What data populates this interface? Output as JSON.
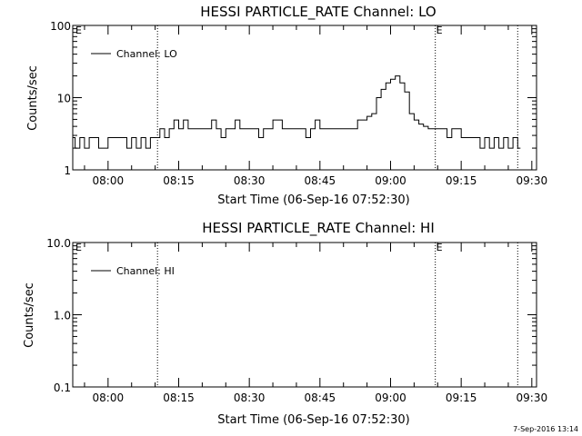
{
  "footer": {
    "timestamp": "7-Sep-2016 13:14"
  },
  "chart_data": [
    {
      "type": "line",
      "title": "HESSI PARTICLE_RATE Channel: LO",
      "xlabel": "Start Time (06-Sep-16 07:52:30)",
      "ylabel": "Counts/sec",
      "y_scale": "log",
      "ylim": [
        1,
        100
      ],
      "xlim": [
        "07:52:30",
        "09:31:00"
      ],
      "y_ticks": [
        {
          "value": 1,
          "label": "1"
        },
        {
          "value": 10,
          "label": "10"
        },
        {
          "value": 100,
          "label": "100"
        }
      ],
      "x_ticks": [
        {
          "value": "08:00",
          "label": "08:00"
        },
        {
          "value": "08:15",
          "label": "08:15"
        },
        {
          "value": "08:30",
          "label": "08:30"
        },
        {
          "value": "08:45",
          "label": "08:45"
        },
        {
          "value": "09:00",
          "label": "09:00"
        },
        {
          "value": "09:15",
          "label": "09:15"
        },
        {
          "value": "09:30",
          "label": "09:30"
        }
      ],
      "flag_lines": [
        {
          "time": "08:10:30",
          "label": ""
        },
        {
          "time": "09:09:30",
          "label": "E"
        },
        {
          "time": "09:27:00",
          "label": ""
        }
      ],
      "corner_flag": "E",
      "legend": "top-left",
      "series": [
        {
          "name": "Channel: LO",
          "x": [
            "07:52:30",
            "07:53:00",
            "07:54:00",
            "07:55:00",
            "07:56:00",
            "07:57:00",
            "07:58:00",
            "08:00:00",
            "08:02:00",
            "08:04:00",
            "08:05:00",
            "08:06:00",
            "08:07:00",
            "08:08:00",
            "08:09:00",
            "08:10:00",
            "08:11:00",
            "08:12:00",
            "08:13:00",
            "08:14:00",
            "08:15:00",
            "08:16:00",
            "08:17:00",
            "08:18:00",
            "08:20:00",
            "08:22:00",
            "08:23:00",
            "08:24:00",
            "08:25:00",
            "08:26:00",
            "08:27:00",
            "08:28:00",
            "08:30:00",
            "08:32:00",
            "08:33:00",
            "08:34:00",
            "08:35:00",
            "08:37:00",
            "08:39:00",
            "08:41:00",
            "08:42:00",
            "08:43:00",
            "08:44:00",
            "08:45:00",
            "08:46:00",
            "08:48:00",
            "08:50:00",
            "08:52:00",
            "08:53:00",
            "08:54:00",
            "08:55:00",
            "08:56:00",
            "08:57:00",
            "08:58:00",
            "08:59:00",
            "09:00:00",
            "09:01:00",
            "09:02:00",
            "09:03:00",
            "09:04:00",
            "09:05:00",
            "09:06:00",
            "09:07:00",
            "09:08:00",
            "09:09:30",
            "09:11:00",
            "09:12:00",
            "09:13:00",
            "09:14:00",
            "09:15:00",
            "09:16:00",
            "09:17:00",
            "09:18:00",
            "09:19:00",
            "09:20:00",
            "09:21:00",
            "09:22:00",
            "09:23:00",
            "09:24:00",
            "09:25:00",
            "09:26:00",
            "09:27:00"
          ],
          "y": [
            2.8,
            2.0,
            2.8,
            2.0,
            2.8,
            2.8,
            2.0,
            2.8,
            2.8,
            2.0,
            2.8,
            2.0,
            2.8,
            2.0,
            2.8,
            2.8,
            3.7,
            2.8,
            3.7,
            4.9,
            3.7,
            4.9,
            3.7,
            3.7,
            3.7,
            4.9,
            3.7,
            2.8,
            3.7,
            3.7,
            4.9,
            3.7,
            3.7,
            2.8,
            3.7,
            3.7,
            4.9,
            3.7,
            3.7,
            3.7,
            2.8,
            3.7,
            4.9,
            3.7,
            3.7,
            3.7,
            3.7,
            3.7,
            4.9,
            4.9,
            5.5,
            6.0,
            10.0,
            13.0,
            16.0,
            18.0,
            20.0,
            16.0,
            12.0,
            6.0,
            4.9,
            4.3,
            4.0,
            3.7,
            3.7,
            3.7,
            2.8,
            3.7,
            3.7,
            2.8,
            2.8,
            2.8,
            2.8,
            2.0,
            2.8,
            2.0,
            2.8,
            2.0,
            2.8,
            2.0,
            2.8,
            2.0
          ]
        }
      ]
    },
    {
      "type": "line",
      "title": "HESSI PARTICLE_RATE Channel: HI",
      "xlabel": "Start Time (06-Sep-16 07:52:30)",
      "ylabel": "Counts/sec",
      "y_scale": "log",
      "ylim": [
        0.1,
        10
      ],
      "xlim": [
        "07:52:30",
        "09:31:00"
      ],
      "y_ticks": [
        {
          "value": 0.1,
          "label": "0.1"
        },
        {
          "value": 1,
          "label": "1.0"
        },
        {
          "value": 10,
          "label": "10.0"
        }
      ],
      "x_ticks": [
        {
          "value": "08:00",
          "label": "08:00"
        },
        {
          "value": "08:15",
          "label": "08:15"
        },
        {
          "value": "08:30",
          "label": "08:30"
        },
        {
          "value": "08:45",
          "label": "08:45"
        },
        {
          "value": "09:00",
          "label": "09:00"
        },
        {
          "value": "09:15",
          "label": "09:15"
        },
        {
          "value": "09:30",
          "label": "09:30"
        }
      ],
      "flag_lines": [
        {
          "time": "08:10:30",
          "label": ""
        },
        {
          "time": "09:09:30",
          "label": "E"
        },
        {
          "time": "09:27:00",
          "label": ""
        }
      ],
      "corner_flag": "E",
      "legend": "top-left",
      "series": [
        {
          "name": "Channel: HI",
          "x": [],
          "y": []
        }
      ]
    }
  ]
}
